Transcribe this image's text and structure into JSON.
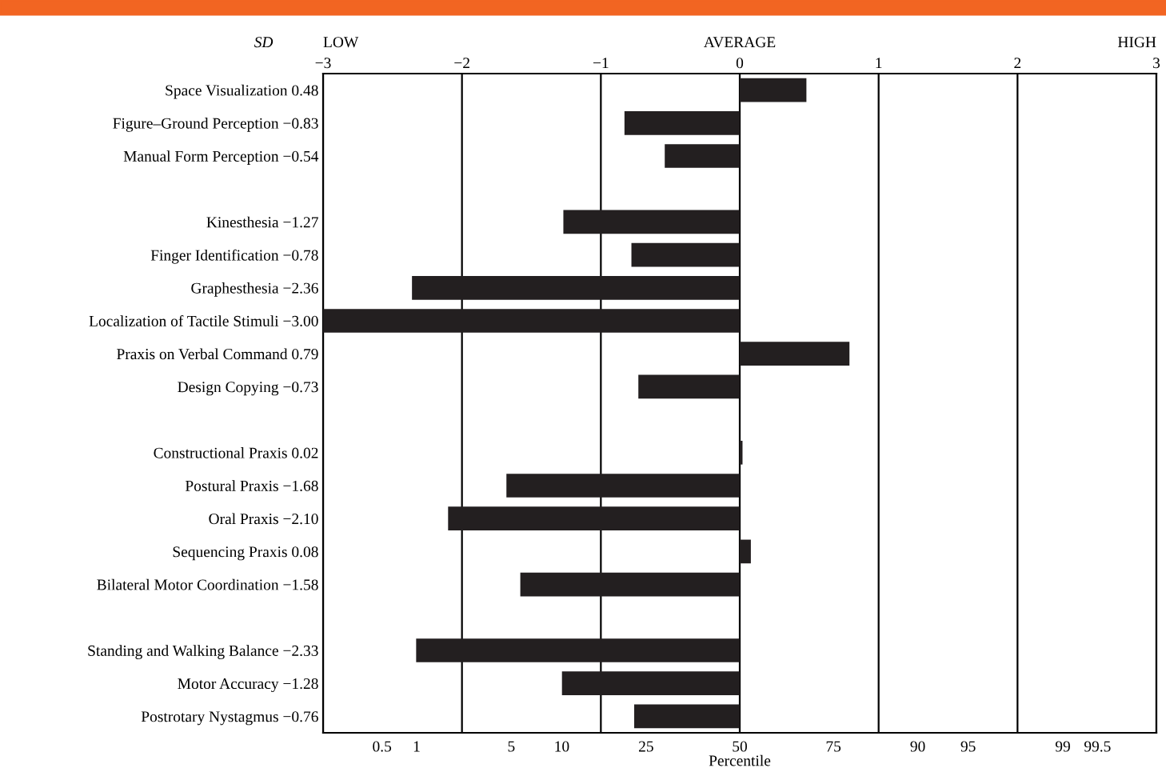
{
  "chart_data": {
    "type": "bar",
    "orientation": "horizontal",
    "categories": [
      "Space Visualization",
      "Figure–Ground Perception",
      "Manual Form Perception",
      null,
      "Kinesthesia",
      "Finger Identification",
      "Graphesthesia",
      "Localization of Tactile Stimuli",
      "Praxis on Verbal Command",
      "Design Copying",
      null,
      "Constructional Praxis",
      "Postural Praxis",
      "Oral Praxis",
      "Sequencing Praxis",
      "Bilateral Motor Coordination",
      null,
      "Standing and Walking Balance",
      "Motor Accuracy",
      "Postrotary Nystagmus"
    ],
    "values": [
      0.48,
      -0.83,
      -0.54,
      null,
      -1.27,
      -0.78,
      -2.36,
      -3.0,
      0.79,
      -0.73,
      null,
      0.02,
      -1.68,
      -2.1,
      0.08,
      -1.58,
      null,
      -2.33,
      -1.28,
      -0.76
    ],
    "value_labels": [
      "0.48",
      "−0.83",
      "−0.54",
      null,
      "−1.27",
      "−0.78",
      "−2.36",
      "−3.00",
      "0.79",
      "−0.73",
      null,
      "0.02",
      "−1.68",
      "−2.10",
      "0.08",
      "−1.58",
      null,
      "−2.33",
      "−1.28",
      "−0.76"
    ],
    "color": "#231f20",
    "xlim": [
      -3,
      3
    ],
    "xticks": [
      -3,
      -2,
      -1,
      0,
      1,
      2,
      3
    ],
    "xlabel": "Percentile",
    "grid": "x",
    "annotations": [
      "SD",
      "LOW",
      "AVERAGE",
      "HIGH",
      "0.5",
      "1",
      "5",
      "10",
      "25",
      "50",
      "75",
      "90",
      "95",
      "99",
      "99.5"
    ]
  }
}
